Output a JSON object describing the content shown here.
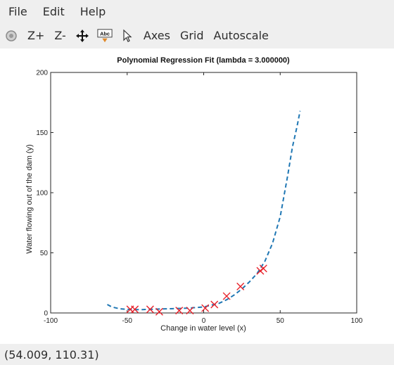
{
  "menu": {
    "file": "File",
    "edit": "Edit",
    "help": "Help"
  },
  "toolbar": {
    "rotate_icon": "rotate-icon",
    "zoom_in": "Z+",
    "zoom_out": "Z-",
    "pan_icon": "pan-icon",
    "text_icon": "text-tool-icon",
    "text_icon_label": "Abc",
    "pointer_icon": "pointer-icon",
    "axes": "Axes",
    "grid": "Grid",
    "autoscale": "Autoscale"
  },
  "status": {
    "coordinates": "(54.009, 110.31)"
  },
  "chart_data": {
    "type": "scatter",
    "title": "Polynomial Regression Fit (lambda = 3.000000)",
    "xlabel": "Change in water level (x)",
    "ylabel": "Water flowing out of the dam (y)",
    "xlim": [
      -100,
      100
    ],
    "ylim": [
      0,
      200
    ],
    "xticks": [
      -100,
      -50,
      0,
      50,
      100
    ],
    "yticks": [
      0,
      50,
      100,
      150,
      200
    ],
    "grid": false,
    "colors": {
      "points": "#e8212a",
      "fit": "#1f77b4"
    },
    "points": {
      "x": [
        -48,
        -45,
        -35,
        -29,
        -16,
        -9,
        1,
        7,
        15,
        24,
        37,
        39
      ],
      "y": [
        3,
        3,
        3,
        1,
        2,
        2,
        4,
        7,
        14,
        22,
        35,
        37
      ]
    },
    "fit": {
      "x": [
        -63,
        -60,
        -55,
        -50,
        -45,
        -40,
        -35,
        -30,
        -25,
        -20,
        -15,
        -10,
        -5,
        0,
        5,
        10,
        15,
        20,
        25,
        30,
        35,
        40,
        45,
        50,
        55,
        58,
        61,
        63
      ],
      "y": [
        7,
        5,
        3.5,
        3,
        2.8,
        2.8,
        3,
        3.2,
        3.4,
        3.6,
        3.8,
        4,
        4.5,
        5,
        6.5,
        8,
        11,
        15,
        20,
        26,
        33,
        43,
        58,
        80,
        115,
        138,
        155,
        168
      ]
    }
  }
}
